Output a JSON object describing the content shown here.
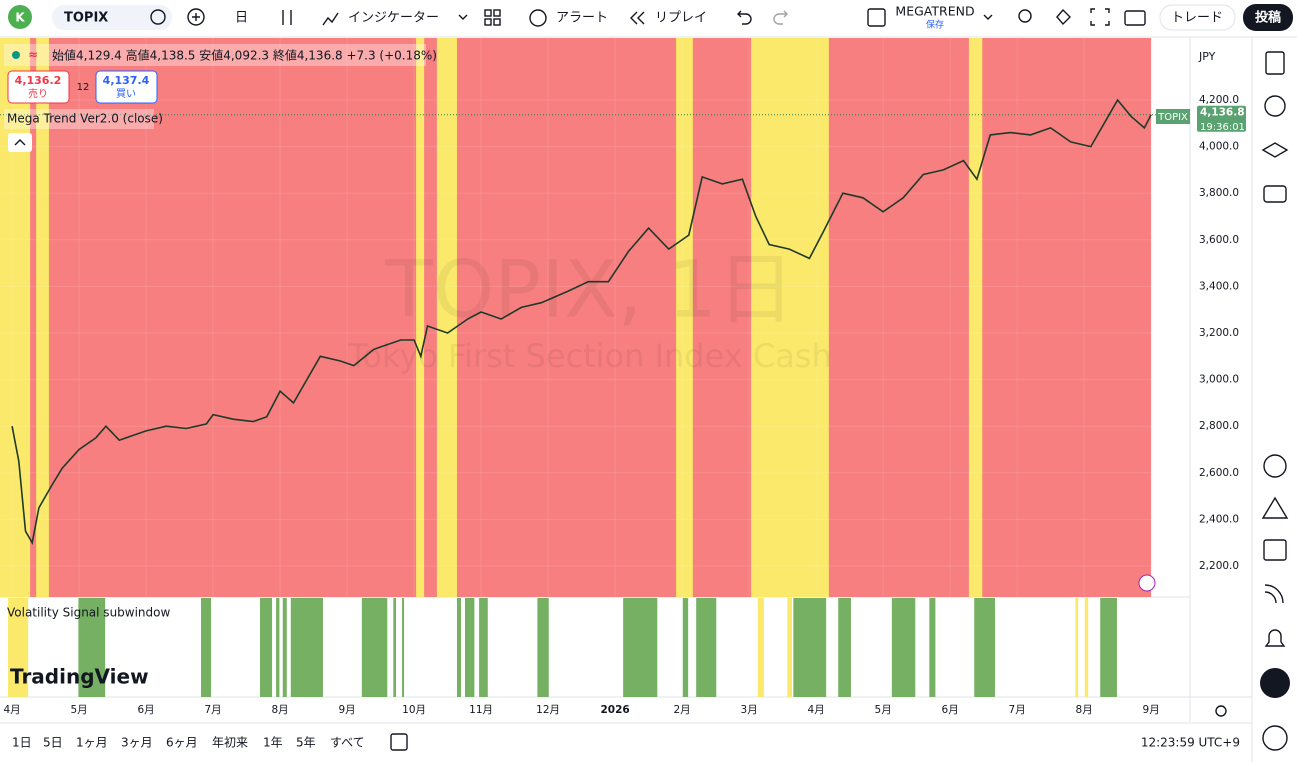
{
  "toolbar": {
    "avatar": "K",
    "symbol": "TOPIX",
    "interval": "日",
    "indicators": "インジケーター",
    "alert": "アラート",
    "replay": "リプレイ",
    "layout_name": "MEGATREND",
    "save_status": "保存",
    "trade": "トレード",
    "publish": "投稿"
  },
  "legend": {
    "ohlc": "始値4,129.4 高値4,138.5 安値4,092.3 終値4,136.8 +7.3 (+0.18%)",
    "sell_price": "4,136.2",
    "sell": "売り",
    "spread": 12,
    "buy_price": "4,137.4",
    "buy": "買い",
    "indicator": "Mega Trend Ver2.0 (close)"
  },
  "watermark": {
    "title": "TOPIX, 1日",
    "description": "Tokyo First Section Index Cash"
  },
  "subwindow_title": "Volatility Signal subwindow",
  "logo": "TradingView",
  "currency": "JPY",
  "price_tag": {
    "symbol": "TOPIX",
    "countdown": "19:36:01"
  },
  "bottom_bar": {
    "ranges": [
      "1日",
      "5日",
      "1ヶ月",
      "3ヶ月",
      "6ヶ月",
      "年初来",
      "1年",
      "5年",
      "すべて"
    ],
    "clock": "12:23:59 UTC+9"
  },
  "chart_data": {
    "type": "line",
    "x": [
      0,
      0.1,
      0.2,
      0.3,
      0.4,
      0.5,
      0.6,
      0.75,
      1.0,
      1.25,
      1.4,
      1.6,
      1.8,
      2.0,
      2.3,
      2.6,
      2.9,
      3.0,
      3.3,
      3.6,
      3.8,
      4.0,
      4.2,
      4.4,
      4.6,
      4.9,
      5.1,
      5.4,
      5.8,
      6.0,
      6.1,
      6.2,
      6.5,
      6.8,
      7.0,
      7.3,
      7.6,
      7.9,
      8.3,
      8.6,
      8.9,
      9.2,
      9.5,
      9.8,
      10.1,
      10.3,
      10.6,
      10.9,
      11.1,
      11.3,
      11.6,
      11.9,
      12.1,
      12.4,
      12.7,
      13.0,
      13.3,
      13.6,
      13.9,
      14.2,
      14.4,
      14.6,
      14.9,
      15.2,
      15.5,
      15.8,
      16.1,
      16.3,
      16.5,
      16.7,
      16.9,
      17.0
    ],
    "series": [
      {
        "name": "TOPIX",
        "color": "#1f3a2a",
        "values": [
          2800,
          2650,
          2350,
          2300,
          2450,
          2500,
          2550,
          2620,
          2700,
          2750,
          2800,
          2740,
          2760,
          2780,
          2800,
          2790,
          2810,
          2850,
          2830,
          2820,
          2840,
          2950,
          2900,
          3000,
          3100,
          3080,
          3060,
          3130,
          3170,
          3170,
          3100,
          3230,
          3200,
          3260,
          3290,
          3260,
          3310,
          3330,
          3380,
          3420,
          3420,
          3550,
          3650,
          3560,
          3620,
          3870,
          3840,
          3860,
          3700,
          3580,
          3560,
          3520,
          3630,
          3800,
          3780,
          3720,
          3780,
          3880,
          3900,
          3940,
          3860,
          4050,
          4060,
          4050,
          4080,
          4020,
          4000,
          4100,
          4200,
          4130,
          4080,
          4136.8
        ]
      }
    ],
    "last_price": {
      "value": 4136.8,
      "label": "4,136.8"
    },
    "xlim": [
      -0.18,
      17.58
    ],
    "xticks": [
      {
        "value": 0,
        "label": "4月"
      },
      {
        "value": 1,
        "label": "5月"
      },
      {
        "value": 2,
        "label": "6月"
      },
      {
        "value": 3,
        "label": "7月"
      },
      {
        "value": 4,
        "label": "8月"
      },
      {
        "value": 5,
        "label": "9月"
      },
      {
        "value": 6,
        "label": "10月"
      },
      {
        "value": 7,
        "label": "11月"
      },
      {
        "value": 8,
        "label": "12月"
      },
      {
        "value": 9,
        "label": "2026"
      },
      {
        "value": 10,
        "label": "2月"
      },
      {
        "value": 11,
        "label": "3月"
      },
      {
        "value": 12,
        "label": "4月"
      },
      {
        "value": 13,
        "label": "5月"
      },
      {
        "value": 14,
        "label": "6月"
      },
      {
        "value": 15,
        "label": "7月"
      },
      {
        "value": 16,
        "label": "8月"
      },
      {
        "value": 17,
        "label": "9月"
      }
    ],
    "ylim": [
      2067,
      4466
    ],
    "yticks": [
      {
        "value": 2200,
        "label": "2,200.0"
      },
      {
        "value": 2400,
        "label": "2,400.0"
      },
      {
        "value": 2600,
        "label": "2,600.0"
      },
      {
        "value": 2800,
        "label": "2,800.0"
      },
      {
        "value": 3000,
        "label": "3,000.0"
      },
      {
        "value": 3200,
        "label": "3,200.0"
      },
      {
        "value": 3400,
        "label": "3,400.0"
      },
      {
        "value": 3600,
        "label": "3,600.0"
      },
      {
        "value": 3800,
        "label": "3,800.0"
      },
      {
        "value": 4000,
        "label": "4,000.0"
      },
      {
        "value": 4200,
        "label": "4,200.0"
      }
    ],
    "grid": true,
    "trend_color": "#f77f7f",
    "zone_color": "#fbe96b",
    "signal_color": "#76b062",
    "yellow_zones": [
      [
        -0.18,
        0.27
      ],
      [
        0.36,
        0.55
      ],
      [
        6.03,
        6.15
      ],
      [
        6.34,
        6.64
      ],
      [
        9.91,
        10.16
      ],
      [
        11.03,
        12.19
      ],
      [
        14.28,
        14.48
      ]
    ],
    "signals": [
      [
        0.99,
        1.39
      ],
      [
        2.82,
        2.97
      ],
      [
        3.7,
        3.88
      ],
      [
        3.94,
        3.99
      ],
      [
        4.04,
        4.1
      ],
      [
        4.16,
        4.64
      ],
      [
        5.22,
        5.6
      ],
      [
        5.69,
        5.73
      ],
      [
        5.82,
        5.85
      ],
      [
        6.64,
        6.7
      ],
      [
        6.76,
        6.9
      ],
      [
        6.97,
        7.1
      ],
      [
        7.84,
        8.01
      ],
      [
        9.12,
        9.63
      ],
      [
        10.01,
        10.09
      ],
      [
        10.21,
        10.51
      ],
      [
        11.66,
        12.15
      ],
      [
        12.33,
        12.52
      ],
      [
        13.13,
        13.48
      ],
      [
        13.69,
        13.78
      ],
      [
        14.36,
        14.67
      ],
      [
        16.24,
        16.49
      ]
    ],
    "signal_zones": [
      [
        -0.06,
        0.24
      ],
      [
        11.13,
        11.22
      ],
      [
        11.57,
        11.64
      ],
      [
        15.87,
        15.91
      ],
      [
        16.01,
        16.06
      ]
    ]
  }
}
